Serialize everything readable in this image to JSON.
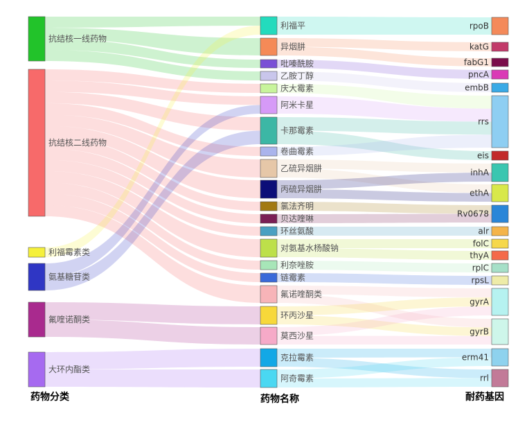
{
  "axis_labels": [
    "药物分类",
    "药物名称",
    "耐药基因"
  ],
  "categories": [
    {
      "id": "c1",
      "label": "抗结核一线药物",
      "color": "#22c32a"
    },
    {
      "id": "c2",
      "label": "抗结核二线药物",
      "color": "#f76a6a"
    },
    {
      "id": "c3",
      "label": "利福霉素类",
      "color": "#f5f03a"
    },
    {
      "id": "c4",
      "label": "氨基糖苷类",
      "color": "#2f36c4"
    },
    {
      "id": "c5",
      "label": "氟喹诺酮类",
      "color": "#a92a8e"
    },
    {
      "id": "c6",
      "label": "大环内酯类",
      "color": "#a66af0"
    }
  ],
  "drugs": [
    {
      "id": "d1",
      "label": "利福平",
      "color": "#23dbbd"
    },
    {
      "id": "d2",
      "label": "异烟肼",
      "color": "#f58a57"
    },
    {
      "id": "d3",
      "label": "吡嗪酰胺",
      "color": "#7a4fd6"
    },
    {
      "id": "d4",
      "label": "乙胺丁醇",
      "color": "#c9c6ec"
    },
    {
      "id": "d5",
      "label": "庆大霉素",
      "color": "#c8f49c"
    },
    {
      "id": "d6",
      "label": "阿米卡星",
      "color": "#d69af7"
    },
    {
      "id": "d7",
      "label": "卡那霉素",
      "color": "#3cb7a5"
    },
    {
      "id": "d8",
      "label": "卷曲霉素",
      "color": "#aab4ec"
    },
    {
      "id": "d9",
      "label": "乙硫异烟肼",
      "color": "#e6c7a8"
    },
    {
      "id": "d10",
      "label": "丙硫异烟肼",
      "color": "#0c0e78"
    },
    {
      "id": "d11",
      "label": "氯法齐明",
      "color": "#a27a12"
    },
    {
      "id": "d12",
      "label": "贝达喹啉",
      "color": "#7a1f55"
    },
    {
      "id": "d13",
      "label": "环丝氨酸",
      "color": "#4aa0c2"
    },
    {
      "id": "d14",
      "label": "对氨基水杨酸钠",
      "color": "#bde04a"
    },
    {
      "id": "d15",
      "label": "利奈唑胺",
      "color": "#a7e6b8"
    },
    {
      "id": "d16",
      "label": "链霉素",
      "color": "#3a6ad9"
    },
    {
      "id": "d17",
      "label": "氟诺喹酮类",
      "color": "#f7b4b8"
    },
    {
      "id": "d18",
      "label": "环丙沙星",
      "color": "#f7d83a"
    },
    {
      "id": "d19",
      "label": "莫西沙星",
      "color": "#f6aac8"
    },
    {
      "id": "d20",
      "label": "克拉霉素",
      "color": "#12a8e6"
    },
    {
      "id": "d21",
      "label": "阿奇霉素",
      "color": "#4ad8f2"
    }
  ],
  "genes": [
    {
      "id": "g1",
      "label": "rpoB",
      "color": "#f48a5a"
    },
    {
      "id": "g2",
      "label": "katG",
      "color": "#c23a6a"
    },
    {
      "id": "g3",
      "label": "fabG1",
      "color": "#7a0c4a"
    },
    {
      "id": "g4",
      "label": "pncA",
      "color": "#da3ab6"
    },
    {
      "id": "g5",
      "label": "embB",
      "color": "#3aaae6"
    },
    {
      "id": "g6",
      "label": "rrs",
      "color": "#8ecef2"
    },
    {
      "id": "g7",
      "label": "eis",
      "color": "#c22a2a"
    },
    {
      "id": "g8",
      "label": "inhA",
      "color": "#3ac6b0"
    },
    {
      "id": "g9",
      "label": "ethA",
      "color": "#d8e84a"
    },
    {
      "id": "g10",
      "label": "Rv0678",
      "color": "#2a86d8"
    },
    {
      "id": "g11",
      "label": "alr",
      "color": "#f4b44a"
    },
    {
      "id": "g12",
      "label": "folC",
      "color": "#f6d84a"
    },
    {
      "id": "g13",
      "label": "thyA",
      "color": "#f46a4a"
    },
    {
      "id": "g14",
      "label": "rplC",
      "color": "#a6e0c8"
    },
    {
      "id": "g15",
      "label": "rpsL",
      "color": "#eeeca8"
    },
    {
      "id": "g16",
      "label": "gyrA",
      "color": "#b6f2f0"
    },
    {
      "id": "g17",
      "label": "gyrB",
      "color": "#cef6ea"
    },
    {
      "id": "g18",
      "label": "erm41",
      "color": "#8ed2ee"
    },
    {
      "id": "g19",
      "label": "rrl",
      "color": "#c27a98"
    }
  ],
  "flows_left": [
    [
      "c1",
      "d1",
      1
    ],
    [
      "c1",
      "d2",
      1
    ],
    [
      "c1",
      "d3",
      1
    ],
    [
      "c1",
      "d4",
      1
    ],
    [
      "c2",
      "d5",
      1
    ],
    [
      "c2",
      "d6",
      1
    ],
    [
      "c2",
      "d7",
      1
    ],
    [
      "c2",
      "d8",
      1
    ],
    [
      "c2",
      "d9",
      1
    ],
    [
      "c2",
      "d10",
      1
    ],
    [
      "c2",
      "d11",
      1
    ],
    [
      "c2",
      "d12",
      1
    ],
    [
      "c2",
      "d13",
      1
    ],
    [
      "c2",
      "d14",
      1
    ],
    [
      "c2",
      "d15",
      1
    ],
    [
      "c2",
      "d16",
      1
    ],
    [
      "c2",
      "d17",
      1
    ],
    [
      "c3",
      "d1",
      1
    ],
    [
      "c4",
      "d6",
      1
    ],
    [
      "c4",
      "d7",
      1
    ],
    [
      "c5",
      "d18",
      1
    ],
    [
      "c5",
      "d19",
      1
    ],
    [
      "c6",
      "d20",
      1
    ],
    [
      "c6",
      "d21",
      1
    ]
  ],
  "flows_right": [
    [
      "d1",
      "g1",
      1
    ],
    [
      "d2",
      "g2",
      1
    ],
    [
      "d2",
      "g3",
      1
    ],
    [
      "d3",
      "g4",
      1
    ],
    [
      "d4",
      "g5",
      1
    ],
    [
      "d5",
      "g6",
      1
    ],
    [
      "d6",
      "g6",
      1
    ],
    [
      "d7",
      "g6",
      1
    ],
    [
      "d7",
      "g7",
      1
    ],
    [
      "d8",
      "g6",
      1
    ],
    [
      "d9",
      "g8",
      1
    ],
    [
      "d9",
      "g9",
      1
    ],
    [
      "d10",
      "g8",
      1
    ],
    [
      "d10",
      "g9",
      1
    ],
    [
      "d11",
      "g10",
      1
    ],
    [
      "d12",
      "g10",
      1
    ],
    [
      "d13",
      "g11",
      1
    ],
    [
      "d14",
      "g12",
      1
    ],
    [
      "d14",
      "g13",
      1
    ],
    [
      "d15",
      "g14",
      1
    ],
    [
      "d16",
      "g15",
      1
    ],
    [
      "d17",
      "g16",
      1
    ],
    [
      "d17",
      "g17",
      1
    ],
    [
      "d18",
      "g16",
      1
    ],
    [
      "d18",
      "g17",
      1
    ],
    [
      "d19",
      "g16",
      1
    ],
    [
      "d19",
      "g17",
      1
    ],
    [
      "d20",
      "g18",
      1
    ],
    [
      "d20",
      "g19",
      1
    ],
    [
      "d21",
      "g18",
      1
    ],
    [
      "d21",
      "g19",
      1
    ]
  ]
}
